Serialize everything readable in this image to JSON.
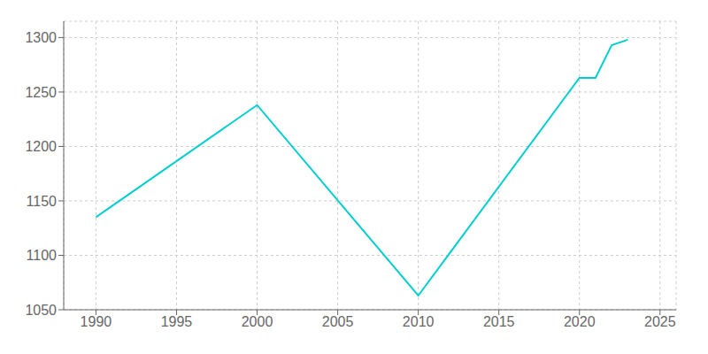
{
  "chart_data": {
    "type": "line",
    "x": [
      1990,
      2000,
      2010,
      2020,
      2021,
      2022,
      2023
    ],
    "values": [
      1135,
      1238,
      1063,
      1263,
      1263,
      1293,
      1298
    ],
    "color": "#00CED1",
    "xlim": [
      1988,
      2026
    ],
    "ylim": [
      1050,
      1315
    ],
    "xticks": [
      1990,
      1995,
      2000,
      2005,
      2010,
      2015,
      2020,
      2025
    ],
    "yticks": [
      1050,
      1100,
      1150,
      1200,
      1250,
      1300
    ],
    "grid": true
  }
}
